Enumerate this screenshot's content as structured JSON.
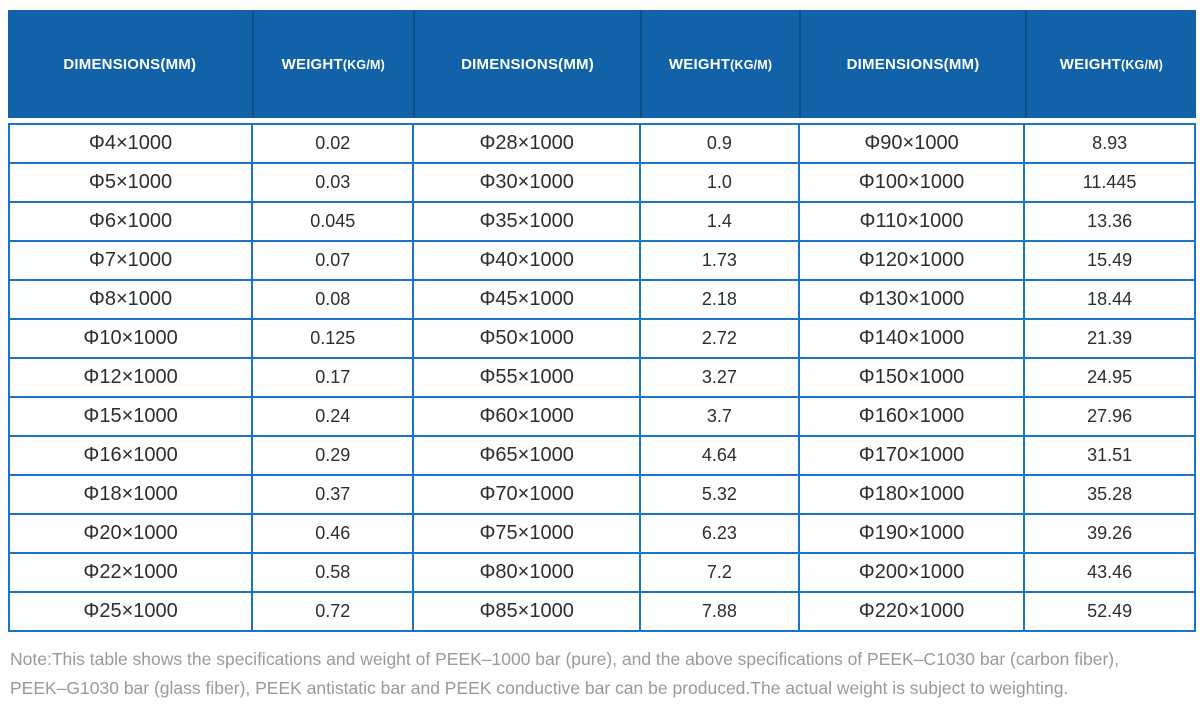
{
  "colors": {
    "header_bg": "#1262aa",
    "header_divider": "#0c4d8c",
    "grid": "#1a74c8",
    "body_text": "#2e2e2e",
    "note_text": "#9a9a9a"
  },
  "table": {
    "columns": [
      {
        "label": "DIMENSIONS(MM)",
        "label_small": ""
      },
      {
        "label": "WEIGHT",
        "label_small": "(KG/M)"
      },
      {
        "label": "DIMENSIONS(MM)",
        "label_small": ""
      },
      {
        "label": "WEIGHT",
        "label_small": "(KG/M)"
      },
      {
        "label": "DIMENSIONS(MM)",
        "label_small": ""
      },
      {
        "label": "WEIGHT",
        "label_small": "(KG/M)"
      }
    ],
    "rows": [
      [
        "Φ4×1000",
        "0.02",
        "Φ28×1000",
        "0.9",
        "Φ90×1000",
        "8.93"
      ],
      [
        "Φ5×1000",
        "0.03",
        "Φ30×1000",
        "1.0",
        "Φ100×1000",
        "11.445"
      ],
      [
        "Φ6×1000",
        "0.045",
        "Φ35×1000",
        "1.4",
        "Φ110×1000",
        "13.36"
      ],
      [
        "Φ7×1000",
        "0.07",
        "Φ40×1000",
        "1.73",
        "Φ120×1000",
        "15.49"
      ],
      [
        "Φ8×1000",
        "0.08",
        "Φ45×1000",
        "2.18",
        "Φ130×1000",
        "18.44"
      ],
      [
        "Φ10×1000",
        "0.125",
        "Φ50×1000",
        "2.72",
        "Φ140×1000",
        "21.39"
      ],
      [
        "Φ12×1000",
        "0.17",
        "Φ55×1000",
        "3.27",
        "Φ150×1000",
        "24.95"
      ],
      [
        "Φ15×1000",
        "0.24",
        "Φ60×1000",
        "3.7",
        "Φ160×1000",
        "27.96"
      ],
      [
        "Φ16×1000",
        "0.29",
        "Φ65×1000",
        "4.64",
        "Φ170×1000",
        "31.51"
      ],
      [
        "Φ18×1000",
        "0.37",
        "Φ70×1000",
        "5.32",
        "Φ180×1000",
        "35.28"
      ],
      [
        "Φ20×1000",
        "0.46",
        "Φ75×1000",
        "6.23",
        "Φ190×1000",
        "39.26"
      ],
      [
        "Φ22×1000",
        "0.58",
        "Φ80×1000",
        "7.2",
        "Φ200×1000",
        "43.46"
      ],
      [
        "Φ25×1000",
        "0.72",
        "Φ85×1000",
        "7.88",
        "Φ220×1000",
        "52.49"
      ]
    ]
  },
  "note": {
    "line1": "Note:This table shows the specifications and weight of PEEK–1000 bar (pure), and the above specifications of PEEK–C1030 bar (carbon fiber),",
    "line2": "PEEK–G1030 bar (glass fiber), PEEK antistatic bar and PEEK conductive bar can be produced.The actual weight is subject to weighting."
  }
}
